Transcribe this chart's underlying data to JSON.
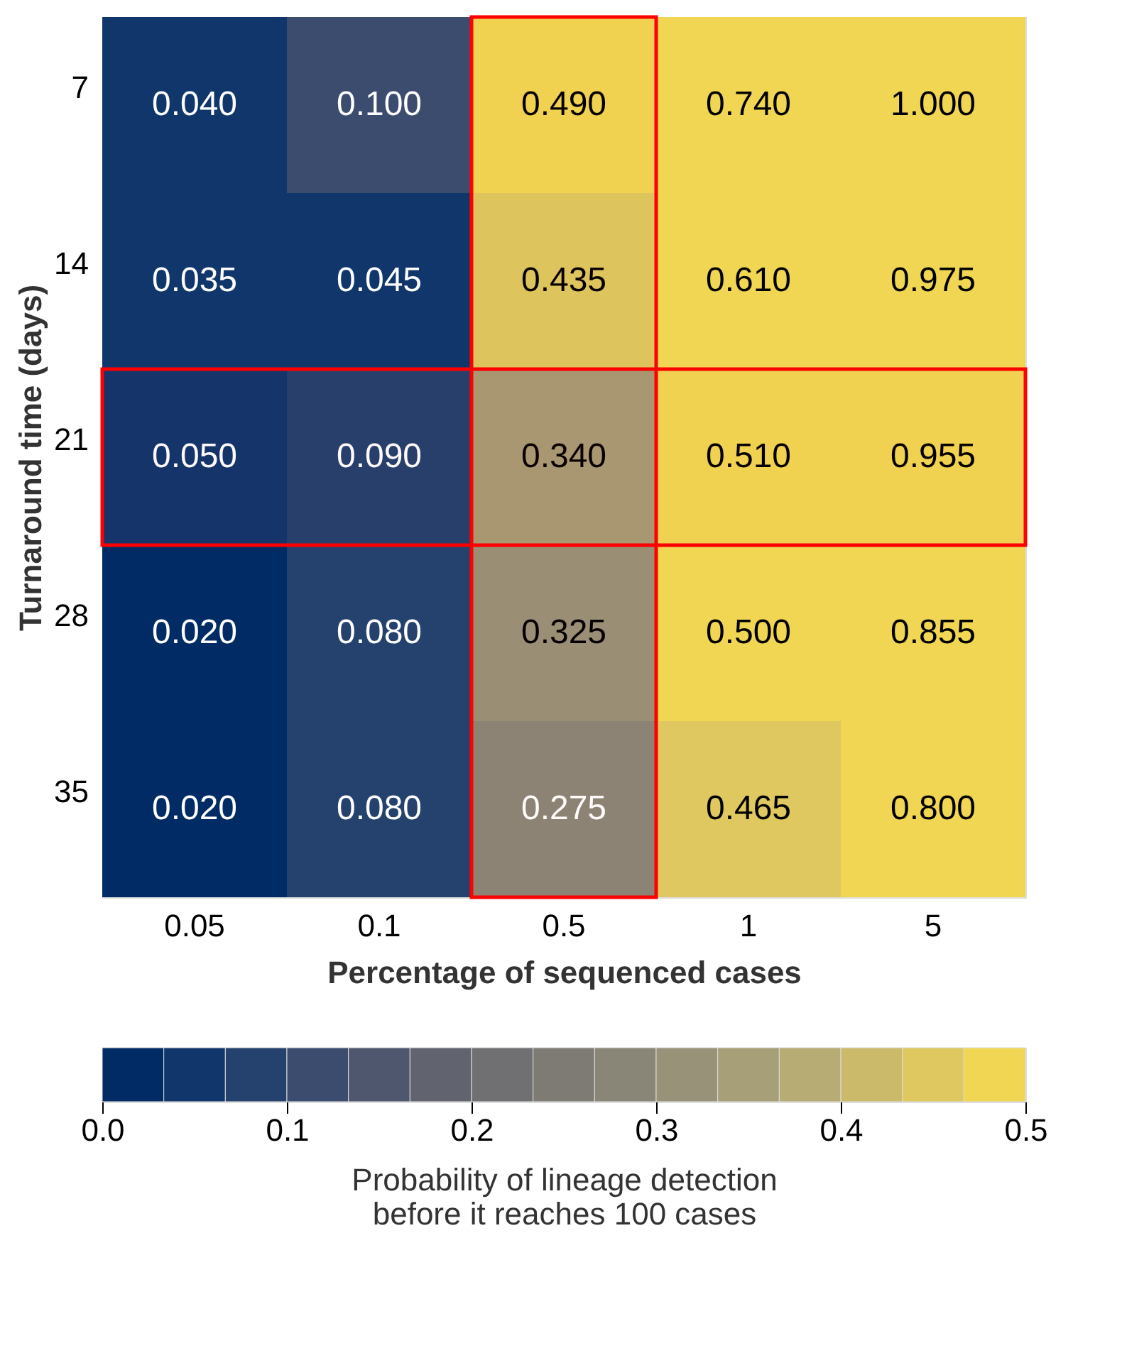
{
  "chart_data": {
    "type": "heatmap",
    "xlabel": "Percentage of sequenced cases",
    "ylabel": "Turnaround time (days)",
    "clabel": "Probability of lineage detection\nbefore it reaches 100 cases",
    "categories": [
      "0.05",
      "0.1",
      "0.5",
      "1",
      "5"
    ],
    "y_categories": [
      "7",
      "14",
      "21",
      "28",
      "35"
    ],
    "cells": [
      [
        0.04,
        0.1,
        0.49,
        0.74,
        1.0
      ],
      [
        0.035,
        0.045,
        0.435,
        0.61,
        0.975
      ],
      [
        0.05,
        0.09,
        0.34,
        0.51,
        0.955
      ],
      [
        0.02,
        0.08,
        0.325,
        0.5,
        0.855
      ],
      [
        0.02,
        0.08,
        0.275,
        0.465,
        0.8
      ]
    ],
    "cell_labels": [
      [
        "0.040",
        "0.100",
        "0.490",
        "0.740",
        "1.000"
      ],
      [
        "0.035",
        "0.045",
        "0.435",
        "0.610",
        "0.975"
      ],
      [
        "0.050",
        "0.090",
        "0.340",
        "0.510",
        "0.955"
      ],
      [
        "0.020",
        "0.080",
        "0.325",
        "0.500",
        "0.855"
      ],
      [
        "0.020",
        "0.080",
        "0.275",
        "0.465",
        "0.800"
      ]
    ],
    "data_labels": true,
    "clim": [
      0,
      0.5
    ],
    "cticks": [
      {
        "value": 0,
        "label": "0.0"
      },
      0.1,
      0.2,
      0.3,
      0.4,
      0.5
    ],
    "bands": [
      {
        "axis": "x",
        "from": "0.5",
        "to": "0.5",
        "color": "#ff0000"
      },
      {
        "axis": "y",
        "from": "21",
        "to": "21",
        "color": "#ff0000"
      }
    ]
  }
}
